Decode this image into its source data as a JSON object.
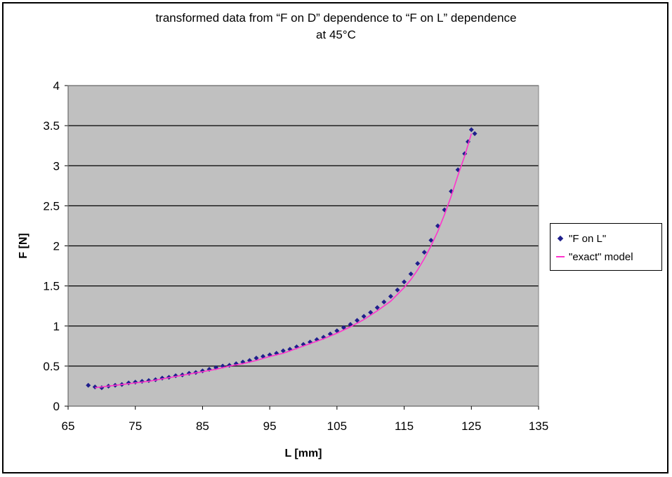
{
  "chart_data": {
    "type": "scatter",
    "title": "transformed data from “F on D” dependence to “F on L” dependence",
    "subtitle": "at 45°C",
    "xlabel": "L [mm]",
    "ylabel": "F [N]",
    "xlim": [
      65,
      135
    ],
    "ylim": [
      0,
      4
    ],
    "x_ticks": [
      65,
      75,
      85,
      95,
      105,
      115,
      125,
      135
    ],
    "y_ticks": [
      0,
      0.5,
      1,
      1.5,
      2,
      2.5,
      3,
      3.5,
      4
    ],
    "grid": "horizontal",
    "plot_background": "#c0c0c0",
    "legend_position": "right",
    "series": [
      {
        "name": "\"F on L\"",
        "style": "markers",
        "color": "#1f1f8c",
        "x": [
          68,
          69,
          70,
          71,
          72,
          73,
          74,
          75,
          76,
          77,
          78,
          79,
          80,
          81,
          82,
          83,
          84,
          85,
          86,
          87,
          88,
          89,
          90,
          91,
          92,
          93,
          94,
          95,
          96,
          97,
          98,
          99,
          100,
          101,
          102,
          103,
          104,
          105,
          106,
          107,
          108,
          109,
          110,
          111,
          112,
          113,
          114,
          115,
          116,
          117,
          118,
          119,
          120,
          121,
          122,
          123,
          124,
          124.5,
          125,
          125.5
        ],
        "y": [
          0.26,
          0.24,
          0.23,
          0.25,
          0.26,
          0.27,
          0.29,
          0.3,
          0.31,
          0.32,
          0.33,
          0.35,
          0.36,
          0.38,
          0.39,
          0.41,
          0.42,
          0.44,
          0.46,
          0.48,
          0.5,
          0.51,
          0.53,
          0.55,
          0.57,
          0.6,
          0.62,
          0.64,
          0.66,
          0.69,
          0.71,
          0.74,
          0.77,
          0.8,
          0.83,
          0.86,
          0.9,
          0.94,
          0.98,
          1.02,
          1.07,
          1.12,
          1.17,
          1.23,
          1.3,
          1.37,
          1.45,
          1.55,
          1.65,
          1.78,
          1.92,
          2.07,
          2.25,
          2.45,
          2.68,
          2.95,
          3.15,
          3.3,
          3.45,
          3.4
        ]
      },
      {
        "name": "\"exact\" model",
        "style": "line",
        "color": "#ff33cc",
        "x": [
          69,
          71,
          73,
          75,
          77,
          79,
          81,
          83,
          85,
          87,
          89,
          91,
          93,
          95,
          97,
          99,
          101,
          103,
          105,
          107,
          109,
          111,
          113,
          115,
          116,
          117,
          118,
          119,
          120,
          121,
          122,
          123,
          124,
          125
        ],
        "y": [
          0.23,
          0.25,
          0.27,
          0.29,
          0.31,
          0.34,
          0.37,
          0.4,
          0.43,
          0.46,
          0.5,
          0.53,
          0.57,
          0.62,
          0.66,
          0.72,
          0.78,
          0.84,
          0.91,
          0.99,
          1.08,
          1.19,
          1.31,
          1.48,
          1.58,
          1.7,
          1.84,
          2.0,
          2.18,
          2.39,
          2.62,
          2.88,
          3.12,
          3.4
        ]
      }
    ]
  }
}
